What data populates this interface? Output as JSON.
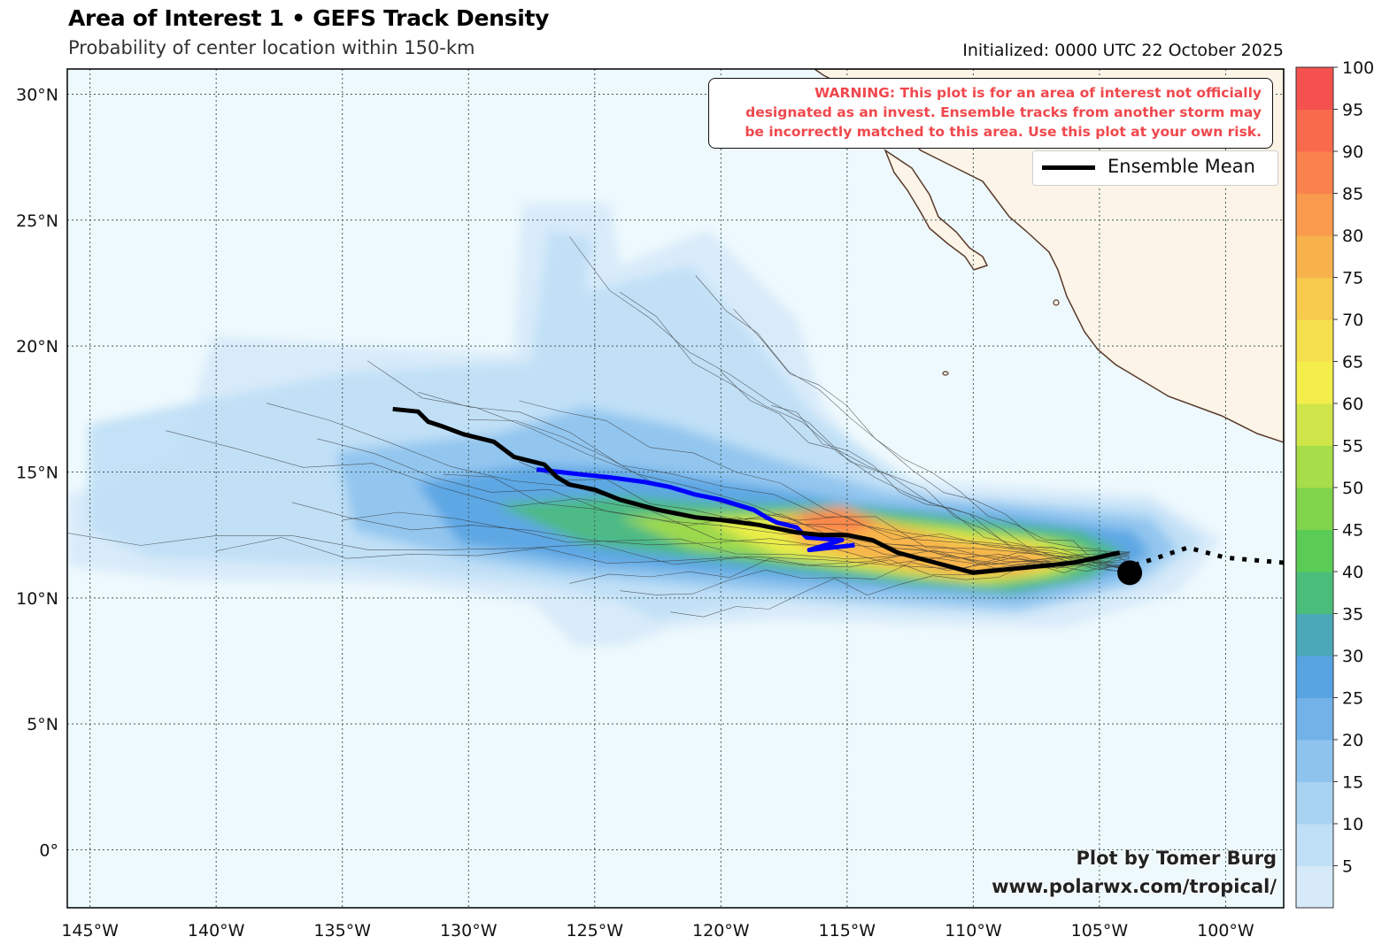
{
  "header": {
    "title": "Area of Interest 1 • GEFS Track Density",
    "subtitle": "Probability of center location within 150-km",
    "initialized": "Initialized: 0000 UTC 22 October 2025"
  },
  "warning": {
    "lines": [
      "WARNING: This plot is for an area of interest not officially",
      "designated as an invest. Ensemble tracks from another storm may",
      "be incorrectly matched to this area. Use this plot at your own risk."
    ]
  },
  "legend": {
    "label": "Ensemble Mean"
  },
  "credits": {
    "line1": "Plot by Tomer Burg",
    "line2": "www.polarwx.com/tropical/"
  },
  "axes": {
    "lon_ticks": [
      {
        "value": -145,
        "label": "145°W"
      },
      {
        "value": -140,
        "label": "140°W"
      },
      {
        "value": -135,
        "label": "135°W"
      },
      {
        "value": -130,
        "label": "130°W"
      },
      {
        "value": -125,
        "label": "125°W"
      },
      {
        "value": -120,
        "label": "120°W"
      },
      {
        "value": -115,
        "label": "115°W"
      },
      {
        "value": -110,
        "label": "110°W"
      },
      {
        "value": -105,
        "label": "105°W"
      },
      {
        "value": -100,
        "label": "100°W"
      }
    ],
    "lat_ticks": [
      {
        "value": 30,
        "label": "30°N"
      },
      {
        "value": 25,
        "label": "25°N"
      },
      {
        "value": 20,
        "label": "20°N"
      },
      {
        "value": 15,
        "label": "15°N"
      },
      {
        "value": 10,
        "label": "10°N"
      },
      {
        "value": 5,
        "label": "5°N"
      },
      {
        "value": 0,
        "label": "0°"
      }
    ],
    "lon_range": [
      -145.9,
      -97.7
    ],
    "lat_range": [
      -2.3,
      31.0
    ]
  },
  "colorbar": {
    "labels": [
      "5",
      "10",
      "15",
      "20",
      "25",
      "30",
      "35",
      "40",
      "45",
      "50",
      "55",
      "60",
      "65",
      "70",
      "75",
      "80",
      "85",
      "90",
      "95",
      "100"
    ],
    "colors": [
      "#d6eafa",
      "#bfdff6",
      "#a8d2f2",
      "#8ec3ee",
      "#72b2e8",
      "#58a3e2",
      "#4aa8b8",
      "#4bbd7a",
      "#5acb55",
      "#7fd44c",
      "#a6dd48",
      "#cfe54a",
      "#f3ee4a",
      "#f6df4c",
      "#f7c94d",
      "#f8b24c",
      "#f99a4c",
      "#fa824c",
      "#f96a4c",
      "#f5524f"
    ]
  },
  "colors": {
    "ocean": "#eef9fd",
    "land": "#fbf4e7",
    "mean_track": "#000000",
    "highlight_track": "#0000ff"
  },
  "tracks": {
    "ensemble_mean": [
      [
        -104.2,
        11.8
      ],
      [
        -106,
        11.4
      ],
      [
        -108,
        11.2
      ],
      [
        -110,
        11.0
      ],
      [
        -111.5,
        11.4
      ],
      [
        -113,
        11.8
      ],
      [
        -114,
        12.3
      ],
      [
        -115,
        12.5
      ],
      [
        -116,
        12.5
      ],
      [
        -117,
        12.6
      ],
      [
        -118.5,
        12.9
      ],
      [
        -120,
        13.1
      ],
      [
        -121,
        13.2
      ],
      [
        -122.5,
        13.5
      ],
      [
        -124,
        13.9
      ],
      [
        -125,
        14.3
      ],
      [
        -126,
        14.5
      ],
      [
        -126.5,
        14.8
      ],
      [
        -127,
        15.3
      ],
      [
        -128.2,
        15.6
      ],
      [
        -129,
        16.2
      ],
      [
        -130.2,
        16.5
      ],
      [
        -131,
        16.8
      ],
      [
        -131.6,
        17.0
      ],
      [
        -132,
        17.4
      ],
      [
        -133.0,
        17.5
      ]
    ],
    "highlight": [
      [
        -114.7,
        12.1
      ],
      [
        -116.5,
        11.9
      ],
      [
        -115.2,
        12.3
      ],
      [
        -116.6,
        12.4
      ],
      [
        -117,
        12.8
      ],
      [
        -117.8,
        13.0
      ],
      [
        -118.2,
        13.2
      ],
      [
        -118.7,
        13.5
      ],
      [
        -120,
        13.9
      ],
      [
        -121,
        14.1
      ],
      [
        -122,
        14.4
      ],
      [
        -123,
        14.6
      ],
      [
        -124.5,
        14.8
      ],
      [
        -125.5,
        14.9
      ],
      [
        -127.3,
        15.1
      ]
    ],
    "observed_dotted": [
      [
        -97.7,
        11.4
      ],
      [
        -100,
        11.6
      ],
      [
        -101.5,
        12.0
      ],
      [
        -103,
        11.5
      ],
      [
        -104.3,
        11.1
      ]
    ],
    "initial_position": [
      -103.8,
      11.0
    ]
  }
}
